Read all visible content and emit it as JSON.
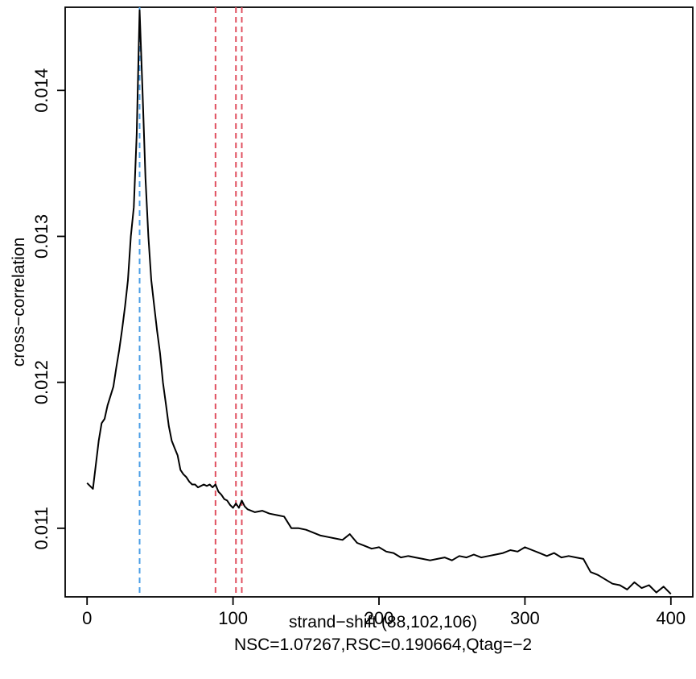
{
  "chart_data": {
    "type": "line",
    "xlabel": "strand−shift (88,102,106)",
    "subtitle": "NSC=1.07267,RSC=0.190664,Qtag=−2",
    "ylabel": "cross−correlation",
    "xlim": [
      -15,
      415
    ],
    "ylim": [
      0.01053,
      0.01457
    ],
    "x_ticks": [
      0,
      100,
      200,
      300,
      400
    ],
    "x_tick_labels": [
      "0",
      "100",
      "200",
      "300",
      "400"
    ],
    "y_ticks": [
      0.011,
      0.012,
      0.013,
      0.014
    ],
    "y_tick_labels": [
      "0.011",
      "0.012",
      "0.013",
      "0.014"
    ],
    "vlines": [
      {
        "x": 36,
        "color": "#4a9ee6",
        "style": "dashed"
      },
      {
        "x": 88,
        "color": "#e05060",
        "style": "dashed"
      },
      {
        "x": 102,
        "color": "#e05060",
        "style": "dashed"
      },
      {
        "x": 106,
        "color": "#e05060",
        "style": "dashed"
      }
    ],
    "series": [
      {
        "color": "#000000",
        "x": [
          0,
          4,
          8,
          10,
          12,
          14,
          18,
          20,
          22,
          24,
          26,
          28,
          30,
          32,
          34,
          36,
          38,
          40,
          42,
          44,
          46,
          48,
          50,
          52,
          54,
          56,
          58,
          60,
          62,
          64,
          66,
          68,
          70,
          72,
          74,
          76,
          78,
          80,
          82,
          84,
          86,
          88,
          90,
          92,
          94,
          96,
          98,
          100,
          102,
          104,
          106,
          108,
          110,
          115,
          120,
          125,
          130,
          135,
          140,
          145,
          150,
          155,
          160,
          165,
          170,
          175,
          180,
          185,
          190,
          195,
          200,
          205,
          210,
          215,
          220,
          225,
          230,
          235,
          240,
          245,
          250,
          255,
          260,
          265,
          270,
          275,
          280,
          285,
          290,
          295,
          300,
          305,
          310,
          315,
          320,
          325,
          330,
          335,
          340,
          345,
          350,
          355,
          360,
          365,
          370,
          375,
          380,
          385,
          390,
          395,
          400
        ],
        "values": [
          0.01131,
          0.01127,
          0.0116,
          0.01172,
          0.01175,
          0.01184,
          0.01197,
          0.0121,
          0.01222,
          0.01236,
          0.01252,
          0.0127,
          0.013,
          0.0132,
          0.0137,
          0.01455,
          0.014,
          0.0134,
          0.013,
          0.0127,
          0.01252,
          0.01235,
          0.0122,
          0.012,
          0.01185,
          0.0117,
          0.0116,
          0.01155,
          0.0115,
          0.0114,
          0.01137,
          0.01135,
          0.01132,
          0.0113,
          0.0113,
          0.01128,
          0.01129,
          0.0113,
          0.01129,
          0.0113,
          0.01128,
          0.0113,
          0.01125,
          0.01123,
          0.0112,
          0.01119,
          0.01116,
          0.01114,
          0.01117,
          0.01114,
          0.01119,
          0.01115,
          0.01113,
          0.01111,
          0.01112,
          0.0111,
          0.01109,
          0.01108,
          0.011,
          0.011,
          0.01099,
          0.01097,
          0.01095,
          0.01094,
          0.01093,
          0.01092,
          0.01096,
          0.0109,
          0.01088,
          0.01086,
          0.01087,
          0.01084,
          0.01083,
          0.0108,
          0.01081,
          0.0108,
          0.01079,
          0.01078,
          0.01079,
          0.0108,
          0.01078,
          0.01081,
          0.0108,
          0.01082,
          0.0108,
          0.01081,
          0.01082,
          0.01083,
          0.01085,
          0.01084,
          0.01087,
          0.01085,
          0.01083,
          0.01081,
          0.01083,
          0.0108,
          0.01081,
          0.0108,
          0.01079,
          0.0107,
          0.01068,
          0.01065,
          0.01062,
          0.01061,
          0.01058,
          0.01063,
          0.01059,
          0.01061,
          0.01056,
          0.0106,
          0.01055
        ]
      }
    ]
  }
}
